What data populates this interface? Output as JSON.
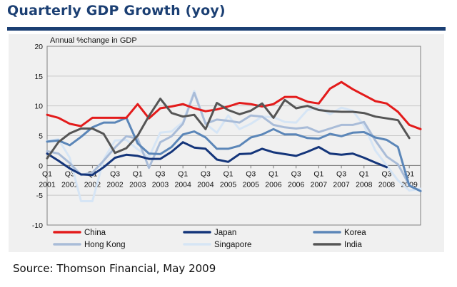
{
  "header": {
    "title": "Quarterly GDP Growth (yoy)"
  },
  "footer": {
    "source": "Source: Thomson Financial, May 2009"
  },
  "chart_data": {
    "type": "line",
    "title": "Quarterly GDP Growth (yoy)",
    "xlabel": "",
    "ylabel": "Annual %change in GDP",
    "ylim": [
      -10,
      20
    ],
    "yticks": [
      20,
      15,
      10,
      5,
      0,
      -5,
      -10
    ],
    "x_labels": [
      {
        "q": "Q1",
        "y": "2001"
      },
      {
        "q": "Q3",
        "y": "2001"
      },
      {
        "q": "Q1",
        "y": "2002"
      },
      {
        "q": "Q3",
        "y": "2002"
      },
      {
        "q": "Q1",
        "y": "2003"
      },
      {
        "q": "Q3",
        "y": "2003"
      },
      {
        "q": "Q1",
        "y": "2004"
      },
      {
        "q": "Q3",
        "y": "2004"
      },
      {
        "q": "Q1",
        "y": "2005"
      },
      {
        "q": "Q3",
        "y": "2005"
      },
      {
        "q": "Q1",
        "y": "2006"
      },
      {
        "q": "Q3",
        "y": "2006"
      },
      {
        "q": "Q1",
        "y": "2007"
      },
      {
        "q": "Q3",
        "y": "2007"
      },
      {
        "q": "Q1",
        "y": "2008"
      },
      {
        "q": "Q3",
        "y": "2008"
      },
      {
        "q": "Q1",
        "y": "2009"
      }
    ],
    "legend_placement": "bottom",
    "series": [
      {
        "name": "China",
        "color": "#e31b1b",
        "values": [
          8.5,
          8.0,
          7.0,
          6.6,
          8.0,
          8.0,
          8.0,
          8.0,
          10.3,
          7.9,
          9.6,
          9.9,
          10.3,
          9.6,
          9.1,
          9.4,
          9.9,
          10.5,
          10.3,
          9.9,
          10.3,
          11.5,
          11.5,
          10.7,
          10.4,
          12.9,
          14.0,
          12.8,
          11.8,
          10.8,
          10.4,
          9.0,
          6.8,
          6.1
        ]
      },
      {
        "name": "Japan",
        "color": "#14357a",
        "values": [
          2.0,
          0.8,
          -0.5,
          -1.5,
          -1.6,
          -0.3,
          1.3,
          1.8,
          1.6,
          1.1,
          1.1,
          2.3,
          3.9,
          3.0,
          2.8,
          1.0,
          0.6,
          1.9,
          2.0,
          2.8,
          2.2,
          1.9,
          1.6,
          2.3,
          3.1,
          2.0,
          1.8,
          2.0,
          1.3,
          0.5,
          -0.3
        ]
      },
      {
        "name": "Korea",
        "color": "#5b86b8",
        "values": [
          4.0,
          4.2,
          3.4,
          4.8,
          6.4,
          7.2,
          7.2,
          8.0,
          3.7,
          2.0,
          1.9,
          3.1,
          5.2,
          5.7,
          4.7,
          2.8,
          2.8,
          3.3,
          4.7,
          5.2,
          6.1,
          5.2,
          5.2,
          4.6,
          4.5,
          5.3,
          4.9,
          5.5,
          5.6,
          4.7,
          4.3,
          3.1,
          -3.4,
          -4.3
        ]
      },
      {
        "name": "Hong Kong",
        "color": "#a9bcd8",
        "values": [
          2.4,
          2.0,
          0.4,
          -1.6,
          -1.2,
          0.8,
          3.0,
          4.9,
          4.5,
          -0.4,
          3.9,
          4.9,
          7.0,
          12.2,
          7.0,
          7.7,
          7.5,
          7.2,
          8.4,
          8.2,
          6.8,
          6.4,
          6.2,
          6.4,
          5.6,
          6.2,
          6.8,
          6.8,
          7.3,
          4.2,
          1.5,
          0.2,
          -3.3,
          -4.3
        ]
      },
      {
        "name": "Singapore",
        "color": "#d6e5f5",
        "values": [
          4.1,
          4.4,
          1.3,
          -6.0,
          -6.0,
          1.0,
          4.2,
          4.3,
          2.7,
          1.4,
          5.5,
          5.7,
          7.3,
          12.5,
          7.0,
          5.5,
          8.4,
          6.1,
          7.0,
          8.2,
          8.1,
          7.3,
          7.2,
          9.3,
          9.7,
          8.6,
          9.7,
          9.2,
          6.7,
          2.5,
          0.0,
          -2.5,
          -4.2,
          -3.9
        ]
      },
      {
        "name": "India",
        "color": "#555555",
        "values": [
          1.2,
          3.9,
          5.4,
          6.2,
          6.2,
          5.3,
          2.1,
          2.9,
          5.0,
          8.3,
          11.2,
          8.8,
          8.2,
          8.5,
          6.1,
          10.5,
          9.3,
          8.6,
          9.2,
          10.4,
          8.0,
          11.0,
          9.6,
          10.0,
          9.3,
          9.1,
          9.0,
          9.0,
          8.8,
          8.2,
          7.9,
          7.6,
          4.6
        ]
      }
    ]
  }
}
